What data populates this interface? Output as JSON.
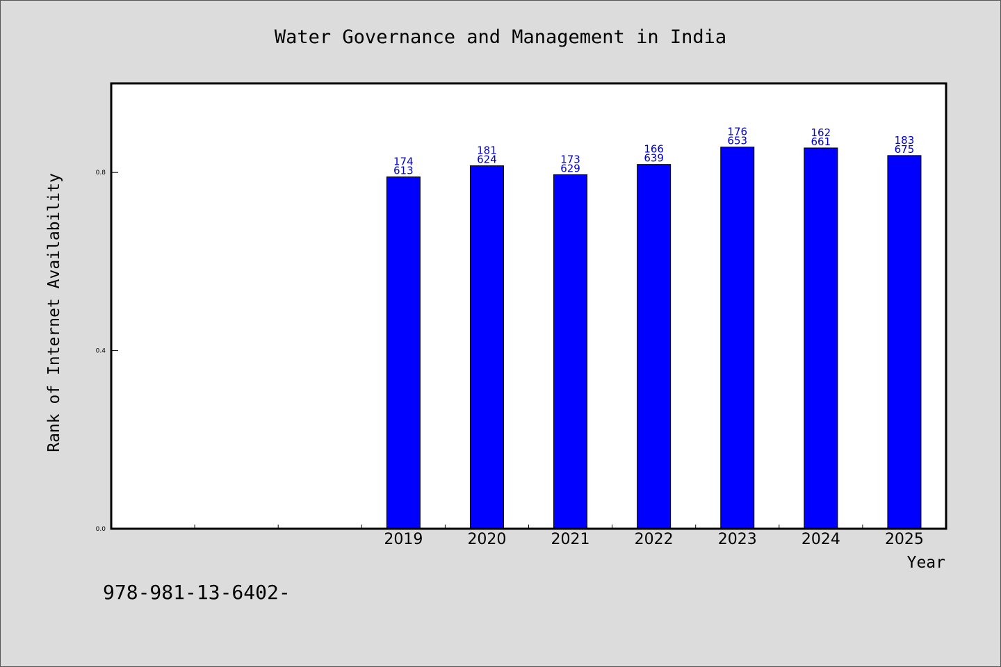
{
  "chart_data": {
    "type": "bar",
    "title": "Water Governance and Management in India",
    "xlabel": "Year",
    "ylabel": "Rank of Internet Availability",
    "categories": [
      "",
      "",
      "",
      "2019",
      "2020",
      "2021",
      "2022",
      "2023",
      "2024",
      "2025"
    ],
    "series": [
      {
        "values": [
          null,
          null,
          null,
          0.79,
          0.815,
          0.795,
          0.818,
          0.857,
          0.855,
          0.838
        ],
        "color": "#0000ff",
        "labels": [
          null,
          null,
          null,
          [
            "174",
            "613"
          ],
          [
            "181",
            "624"
          ],
          [
            "173",
            "629"
          ],
          [
            "166",
            "639"
          ],
          [
            "176",
            "653"
          ],
          [
            "162",
            "661"
          ],
          [
            "183",
            "675"
          ]
        ]
      }
    ],
    "ylim": [
      0,
      1.0
    ],
    "yticks": [
      0.0,
      0.4,
      0.8
    ],
    "ytick_labels": [
      "0.0",
      "0.4",
      "0.8"
    ],
    "grid": false,
    "bar_color": "#0000ff",
    "label_color": "#0000cc",
    "background": "#dcdcdc",
    "plot_background": "#ffffff"
  },
  "footnote": "978-981-13-6402-"
}
